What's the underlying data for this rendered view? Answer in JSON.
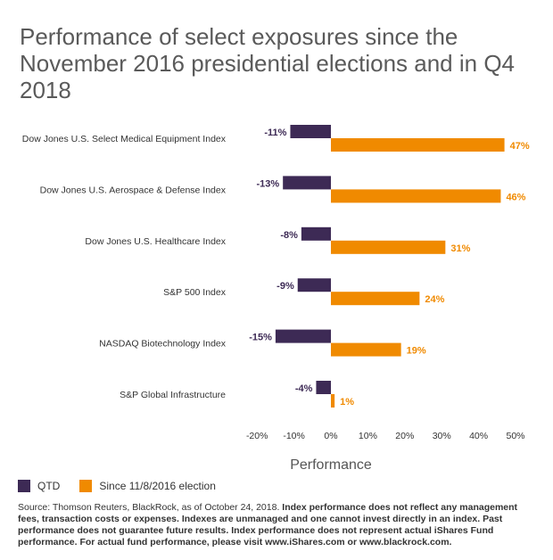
{
  "title": "Performance of select exposures since the November 2016 presidential elections and in Q4 2018",
  "chart_data": {
    "type": "bar",
    "orientation": "horizontal",
    "categories": [
      "Dow Jones U.S. Select Medical Equipment Index",
      "Dow Jones U.S. Aerospace & Defense Index",
      "Dow Jones U.S. Healthcare Index",
      "S&P 500 Index",
      "NASDAQ Biotechnology Index",
      "S&P Global Infrastructure"
    ],
    "series": [
      {
        "name": "QTD",
        "color": "#3d2a55",
        "values": [
          -11,
          -13,
          -8,
          -9,
          -15,
          -4
        ],
        "labels": [
          "-11%",
          "-13%",
          "-8%",
          "-9%",
          "-15%",
          "-4%"
        ]
      },
      {
        "name": "Since 11/8/2016 election",
        "color": "#f08a00",
        "values": [
          47,
          46,
          31,
          24,
          19,
          1
        ],
        "labels": [
          "47%",
          "46%",
          "31%",
          "24%",
          "19%",
          "1%"
        ]
      }
    ],
    "xlim": [
      -20,
      50
    ],
    "xticks": [
      -20,
      -10,
      0,
      10,
      20,
      30,
      40,
      50
    ],
    "xtick_labels": [
      "-20%",
      "-10%",
      "0%",
      "10%",
      "20%",
      "30%",
      "40%",
      "50%"
    ],
    "xlabel": "Performance",
    "grid": false,
    "legend_position": "bottom-left"
  },
  "legend": {
    "qtd_label": "QTD",
    "since_label": "Since 11/8/2016 election"
  },
  "source": {
    "plain": "Source: Thomson Reuters, BlackRock, as of October 24, 2018. ",
    "bold": "Index performance does not reflect any management fees, transaction costs or expenses. Indexes are unmanaged and one cannot invest directly in an index. Past performance does not guarantee future results. Index performance does not represent actual iShares Fund performance. For actual fund performance, please visit www.iShares.com or www.blackrock.com."
  }
}
